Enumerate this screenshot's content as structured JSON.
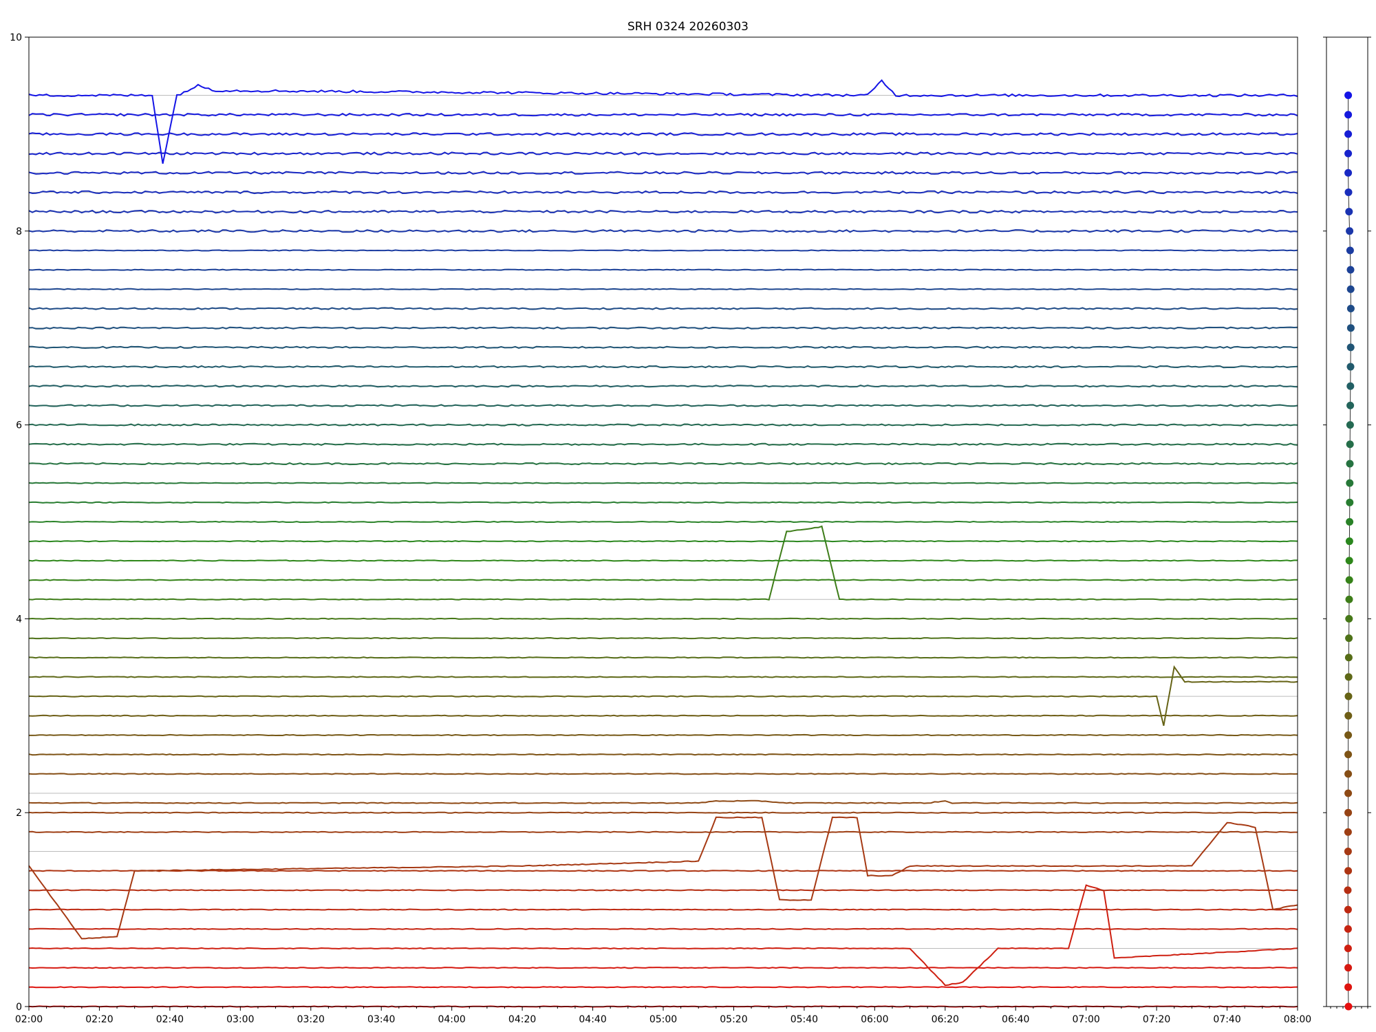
{
  "chart_data": [
    {
      "type": "line",
      "title": "SRH 0324 20260303",
      "xlabel": "",
      "ylabel": "",
      "xlim": [
        "02:00",
        "08:00"
      ],
      "ylim": [
        0,
        10
      ],
      "x_ticks": [
        "02:00",
        "02:20",
        "02:40",
        "03:00",
        "03:20",
        "03:40",
        "04:00",
        "04:20",
        "04:40",
        "05:00",
        "05:20",
        "05:40",
        "06:00",
        "06:20",
        "06:40",
        "07:00",
        "07:20",
        "07:40",
        "08:00"
      ],
      "y_ticks": [
        "0",
        "2",
        "4",
        "6",
        "8",
        "10"
      ],
      "grid": "horizontal lines at each channel baseline",
      "legend": "none",
      "color_map": "red (bottom channel) to green (middle) to blue (top channel)",
      "colors": {
        "low": "#e60f0f",
        "mid": "#2a8a1a",
        "high": "#1414e6",
        "grid": "#bbbbbb"
      },
      "channel_count": 48,
      "channel_spacing": 0.2,
      "series_baselines": [
        0.0,
        0.2,
        0.4,
        0.6,
        0.8,
        1.0,
        1.2,
        1.4,
        1.6,
        1.8,
        2.0,
        2.2,
        2.4,
        2.6,
        2.8,
        3.0,
        3.2,
        3.4,
        3.6,
        3.8,
        4.0,
        4.2,
        4.4,
        4.6,
        4.8,
        5.0,
        5.2,
        5.4,
        5.6,
        5.8,
        6.0,
        6.2,
        6.4,
        6.6,
        6.8,
        7.0,
        7.2,
        7.4,
        7.6,
        7.8,
        8.0,
        8.2,
        8.4,
        8.6,
        8.8,
        9.0,
        9.2,
        9.4
      ],
      "series_events": [
        {
          "index": 8,
          "y_values": {
            "02:00": 1.45,
            "02:15": 0.7,
            "02:25": 0.72,
            "02:30": 1.4,
            "04:20": 1.45,
            "05:10": 1.5,
            "05:15": 1.95,
            "05:28": 1.95,
            "05:33": 1.1,
            "05:42": 1.1,
            "05:48": 1.95,
            "05:55": 1.95,
            "05:58": 1.35,
            "06:05": 1.35,
            "06:10": 1.45,
            "07:30": 1.45,
            "07:40": 1.9,
            "07:48": 1.85,
            "07:53": 1.0,
            "08:00": 1.05
          }
        },
        {
          "index": 11,
          "y_values": {
            "02:00": 2.1,
            "05:10": 2.1,
            "05:15": 2.12,
            "05:28": 2.12,
            "05:35": 2.1,
            "06:15": 2.1,
            "06:20": 2.12,
            "06:22": 2.1,
            "08:00": 2.1
          }
        },
        {
          "index": 3,
          "y_values": {
            "02:00": 0.6,
            "06:10": 0.6,
            "06:20": 0.22,
            "06:25": 0.25,
            "06:35": 0.6,
            "06:55": 0.6,
            "07:00": 1.25,
            "07:05": 1.2,
            "07:08": 0.5,
            "08:00": 0.6
          }
        },
        {
          "index": 21,
          "y_values": {
            "02:00": 4.2,
            "05:30": 4.2,
            "05:35": 4.9,
            "05:45": 4.95,
            "05:50": 4.2,
            "08:00": 4.2
          }
        },
        {
          "index": 16,
          "y_values": {
            "02:00": 3.2,
            "07:20": 3.2,
            "07:22": 2.9,
            "07:25": 3.5,
            "07:28": 3.35,
            "08:00": 3.35
          }
        },
        {
          "index": 47,
          "y_values": {
            "02:00": 9.4,
            "02:35": 9.4,
            "02:38": 8.7,
            "02:42": 9.4,
            "02:48": 9.5,
            "02:53": 9.45,
            "05:58": 9.4,
            "06:02": 9.55,
            "06:06": 9.4,
            "08:00": 9.4
          }
        }
      ]
    },
    {
      "type": "scatter",
      "title": "",
      "xlabel": "",
      "ylabel": "",
      "ylim": [
        0,
        10
      ],
      "y": [
        0.0,
        0.2,
        0.4,
        0.6,
        0.8,
        1.0,
        1.2,
        1.4,
        1.6,
        1.8,
        2.0,
        2.2,
        2.4,
        2.6,
        2.8,
        3.0,
        3.2,
        3.4,
        3.6,
        3.8,
        4.0,
        4.2,
        4.4,
        4.6,
        4.8,
        5.0,
        5.2,
        5.4,
        5.6,
        5.8,
        6.0,
        6.2,
        6.4,
        6.6,
        6.8,
        7.0,
        7.2,
        7.4,
        7.6,
        7.8,
        8.0,
        8.2,
        8.4,
        8.6,
        8.8,
        9.0,
        9.2,
        9.4
      ],
      "x": [
        0.0,
        -0.02,
        -0.02,
        -0.03,
        -0.03,
        -0.03,
        -0.05,
        -0.02,
        -0.03,
        -0.03,
        -0.02,
        -0.02,
        -0.02,
        -0.02,
        -0.02,
        -0.01,
        0.0,
        0.01,
        0.02,
        0.03,
        0.04,
        0.05,
        0.06,
        0.06,
        0.07,
        0.08,
        0.09,
        0.09,
        0.1,
        0.11,
        0.12,
        0.13,
        0.14,
        0.15,
        0.16,
        0.17,
        0.17,
        0.16,
        0.15,
        0.12,
        0.08,
        0.04,
        0.0,
        -0.02,
        -0.02,
        -0.02,
        -0.02,
        -0.02
      ],
      "marker": "filled circle connected by thin dark line",
      "color_map": "red (bottom) to green (middle) to blue (top)"
    }
  ]
}
